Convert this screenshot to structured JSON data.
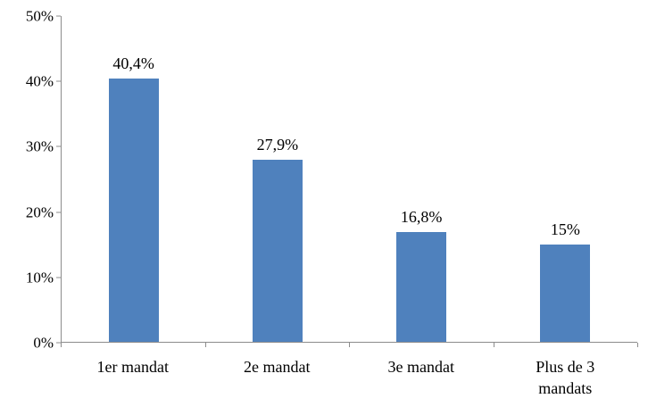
{
  "chart_data": {
    "type": "bar",
    "title": "",
    "xlabel": "",
    "ylabel": "",
    "categories": [
      "1er mandat",
      "2e mandat",
      "3e mandat",
      "Plus de 3 mandats"
    ],
    "values": [
      40.4,
      27.9,
      16.8,
      15
    ],
    "value_labels": [
      "40,4%",
      "27,9%",
      "16,8%",
      "15%"
    ],
    "ylim": [
      0,
      50
    ],
    "y_tick_values": [
      0,
      10,
      20,
      30,
      40,
      50
    ],
    "y_tick_labels": [
      "0%",
      "10%",
      "20%",
      "30%",
      "40%",
      "50%"
    ],
    "grid": false,
    "legend": false,
    "bar_color": "#4F81BD",
    "axis_color": "#8c8c8c",
    "text_color": "#000000"
  }
}
